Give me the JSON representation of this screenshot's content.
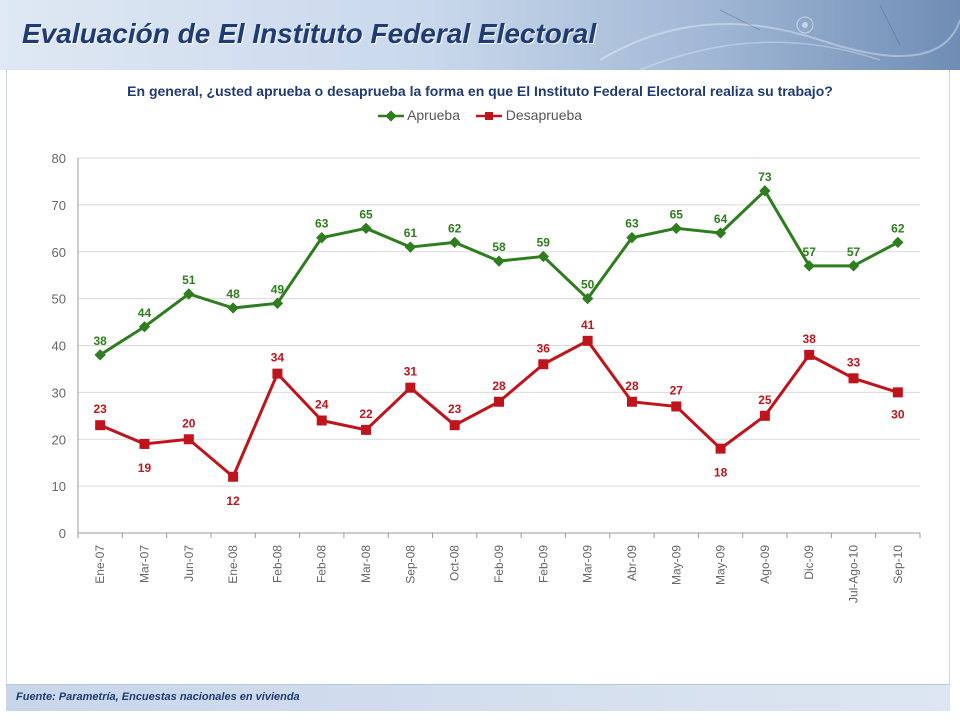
{
  "header": {
    "title": "Evaluación de El Instituto Federal Electoral"
  },
  "footer": {
    "source": "Fuente: Parametría, Encuestas nacionales en vivienda"
  },
  "colors": {
    "aprueba": "#2e7d1e",
    "desaprueba": "#c0141c",
    "title": "#1f3b73"
  },
  "chart_data": {
    "type": "line",
    "title": "En general, ¿usted aprueba o desaprueba la forma en que El Instituto Federal Electoral realiza su trabajo?",
    "xlabel": "",
    "ylabel": "",
    "ylim": [
      0,
      80
    ],
    "yticks": [
      0,
      10,
      20,
      30,
      40,
      50,
      60,
      70,
      80
    ],
    "grid": true,
    "legend_position": "top-center",
    "categories": [
      "Ene-07",
      "Mar-07",
      "Jun-07",
      "Ene-08",
      "Feb-08",
      "Feb-08",
      "Mar-08",
      "Sep-08",
      "Oct-08",
      "Feb-09",
      "Feb-09",
      "Mar-09",
      "Abr-09",
      "May-09",
      "May-09",
      "Ago-09",
      "Dic-09",
      "Jul-Ago-10",
      "Sep-10"
    ],
    "series": [
      {
        "name": "Aprueba",
        "values": [
          38,
          44,
          51,
          48,
          49,
          63,
          65,
          61,
          62,
          58,
          59,
          50,
          63,
          65,
          64,
          73,
          57,
          57,
          62
        ]
      },
      {
        "name": "Desaprueba",
        "values": [
          23,
          19,
          20,
          12,
          34,
          24,
          22,
          31,
          23,
          28,
          36,
          41,
          28,
          27,
          18,
          25,
          38,
          33,
          30
        ]
      }
    ]
  }
}
